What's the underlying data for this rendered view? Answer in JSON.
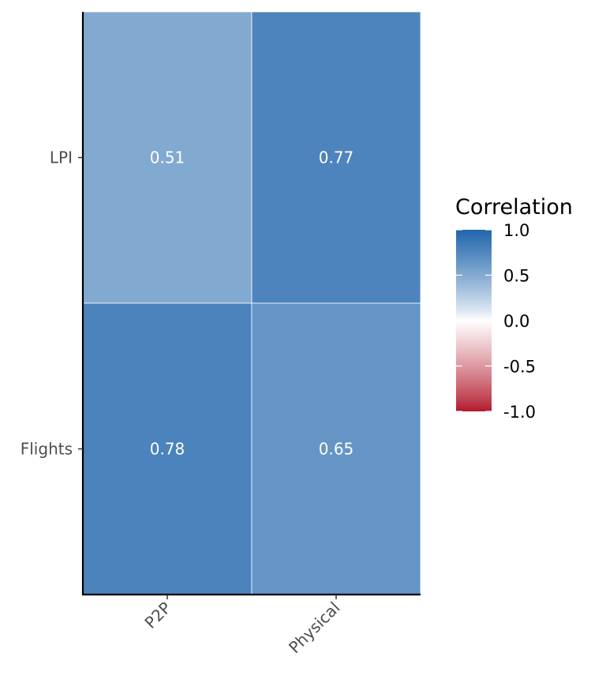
{
  "chart_data": {
    "type": "heatmap",
    "title": "",
    "xlabel": "",
    "ylabel": "",
    "x_categories": [
      "P2P",
      "Physical"
    ],
    "y_categories": [
      "LPI",
      "Flights"
    ],
    "values": [
      [
        0.51,
        0.77
      ],
      [
        0.78,
        0.65
      ]
    ],
    "value_labels": [
      [
        "0.51",
        "0.77"
      ],
      [
        "0.78",
        "0.65"
      ]
    ],
    "color_scale": {
      "low": "#b2182b",
      "mid": "#ffffff",
      "high": "#2166ac",
      "limits": [
        -1,
        1
      ]
    },
    "legend": {
      "title": "Correlation",
      "position": "right",
      "breaks": [
        1.0,
        0.5,
        0.0,
        -0.5,
        -1.0
      ],
      "break_labels": [
        "1.0",
        "0.5",
        "0.0",
        "-0.5",
        "-1.0"
      ]
    },
    "grid": false
  }
}
